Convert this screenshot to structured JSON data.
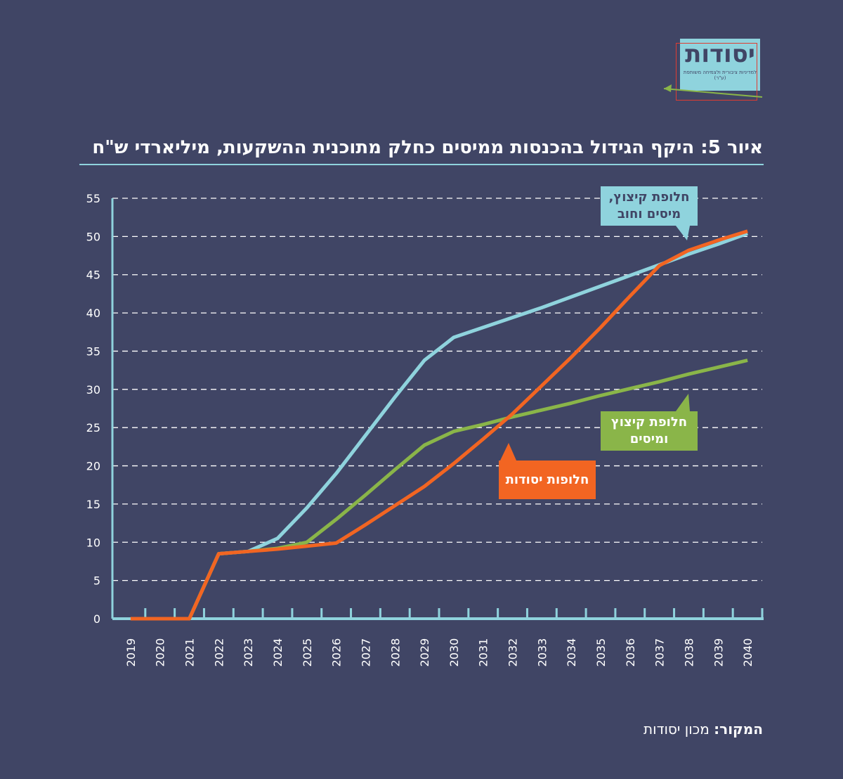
{
  "logo": {
    "name": "יסודות",
    "tagline": "למדיניות ציבורית ולצמיחה משותפת (ע\"ר)"
  },
  "source": {
    "label": "המקור:",
    "text": "מכון יסודות"
  },
  "chart_data": {
    "type": "line",
    "title": "איור 5: היקף הגידול בהכנסות ממיסים כחלק מתוכנית ההשקעות, מיליארדי ש\"ח",
    "categories": [
      "2019",
      "2020",
      "2021",
      "2022",
      "2023",
      "2024",
      "2025",
      "2026",
      "2027",
      "2028",
      "2029",
      "2030",
      "2031",
      "2032",
      "2033",
      "2034",
      "2035",
      "2036",
      "2037",
      "2038",
      "2039",
      "2040"
    ],
    "ylim": [
      0,
      55
    ],
    "yticks": [
      0,
      5,
      10,
      15,
      20,
      25,
      30,
      35,
      40,
      45,
      50,
      55
    ],
    "grid": true,
    "series": [
      {
        "name": "חלופת קיצוץ, מיסים וחוב",
        "color": "#8fd3dd",
        "values": [
          0,
          0,
          0,
          8.5,
          8.8,
          10.5,
          14.5,
          19,
          24,
          29,
          33.8,
          36.8,
          38.1,
          39.4,
          40.7,
          42.1,
          43.5,
          44.9,
          46.3,
          47.7,
          49.0,
          50.4
        ]
      },
      {
        "name": "חלופת קיצוץ ומיסים",
        "color": "#8ab549",
        "values": [
          0,
          0,
          0,
          8.5,
          8.8,
          9.2,
          10,
          13,
          16.2,
          19.5,
          22.7,
          24.5,
          25.4,
          26.4,
          27.3,
          28.2,
          29.2,
          30.1,
          31.0,
          32.0,
          32.9,
          33.8
        ]
      },
      {
        "name": "חלופות יסודות",
        "color": "#f26522",
        "values": [
          0,
          0,
          0,
          8.5,
          8.8,
          9.1,
          9.5,
          9.9,
          12.3,
          14.8,
          17.3,
          20.3,
          23.5,
          26.8,
          30.5,
          34.2,
          38.1,
          42.2,
          46.2,
          48.2,
          49.5,
          50.7
        ]
      }
    ]
  }
}
